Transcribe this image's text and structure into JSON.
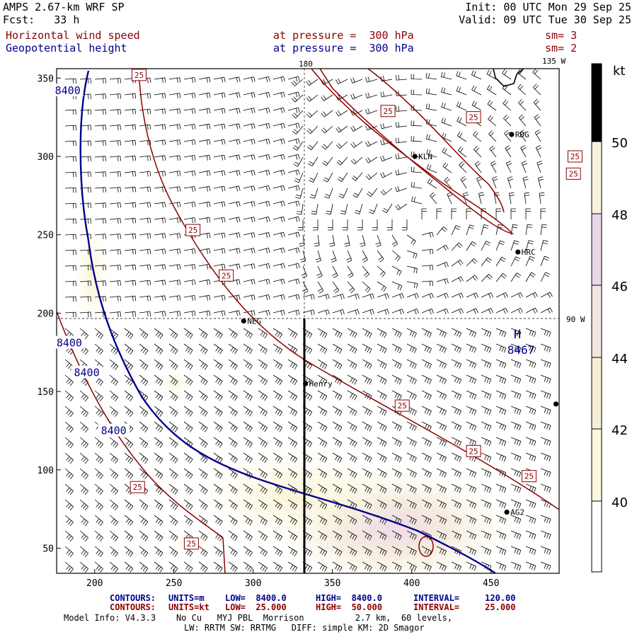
{
  "header": {
    "model": "AMPS 2.67-km WRF SP",
    "forecast": "Fcst:   33 h",
    "init": "Init: 00 UTC Mon 29 Sep 25",
    "valid": "Valid: 09 UTC Tue 30 Sep 25",
    "field1": {
      "name": "Horizontal wind speed",
      "level": "at pressure =  300 hPa",
      "sm": "sm= 3"
    },
    "field2": {
      "name": "Geopotential height",
      "level": "at pressure =  300 hPa",
      "sm": "sm= 2"
    }
  },
  "map": {
    "lon_top_label": "180",
    "lon_right_top_label": "135 W",
    "lon_right_mid_label": "90 W",
    "x_ticks": [
      "200",
      "250",
      "300",
      "350",
      "400",
      "450"
    ],
    "y_ticks": [
      "350",
      "300",
      "250",
      "200",
      "150",
      "100",
      "50"
    ],
    "x_range": [
      176,
      493
    ],
    "y_range": [
      34,
      356
    ],
    "stations": [
      {
        "id": "RDG",
        "x": 463,
        "y": 314
      },
      {
        "id": "KLN",
        "x": 402,
        "y": 300
      },
      {
        "id": "HRC",
        "x": 467,
        "y": 239
      },
      {
        "id": "NEG",
        "x": 294,
        "y": 195
      },
      {
        "id": "Henry",
        "x": 333,
        "y": 155
      },
      {
        "id": "AG2",
        "x": 460,
        "y": 73
      },
      {
        "id": "",
        "x": 491,
        "y": 142
      }
    ],
    "height_labels": [
      {
        "text": "8400",
        "x": 183,
        "y": 342
      },
      {
        "text": "8400",
        "x": 184,
        "y": 181
      },
      {
        "text": "8400",
        "x": 195,
        "y": 162
      },
      {
        "text": "8400",
        "x": 212,
        "y": 125
      }
    ],
    "high_marker": {
      "symbol": "H",
      "value": "8467",
      "x": 469,
      "y": 186
    },
    "wind_labels": [
      {
        "text": "25",
        "x": 228,
        "y": 352
      },
      {
        "text": "25",
        "x": 385,
        "y": 329
      },
      {
        "text": "25",
        "x": 439,
        "y": 325
      },
      {
        "text": "25",
        "x": 503,
        "y": 300
      },
      {
        "text": "25",
        "x": 502,
        "y": 289
      },
      {
        "text": "25",
        "x": 262,
        "y": 253
      },
      {
        "text": "25",
        "x": 283,
        "y": 224
      },
      {
        "text": "25",
        "x": 394,
        "y": 141
      },
      {
        "text": "25",
        "x": 439,
        "y": 112
      },
      {
        "text": "25",
        "x": 474,
        "y": 96
      },
      {
        "text": "25",
        "x": 227,
        "y": 89
      },
      {
        "text": "25",
        "x": 261,
        "y": 53
      }
    ]
  },
  "legend": {
    "unit": "kt",
    "ticks": [
      "50",
      "48",
      "46",
      "44",
      "42",
      "40"
    ],
    "colors": [
      "#ffffff",
      "#fcf7dc",
      "#f6eed6",
      "#f3e6e0",
      "#ead7e8",
      "#f9f3dd"
    ]
  },
  "footer": {
    "contours_height": {
      "label": "CONTOURS:",
      "units": "UNITS=m",
      "low": "LOW=  8400.0",
      "high": "HIGH=  8400.0",
      "interval": "INTERVAL=     120.00"
    },
    "contours_wind": {
      "label": "CONTOURS:",
      "units": "UNITS=kt",
      "low": "LOW=  25.000",
      "high": "HIGH=  50.000",
      "interval": "INTERVAL=     25.000"
    },
    "model_info": "Model Info: V4.3.3    No Cu   MYJ PBL  Morrison          2.7 km,  60 levels,",
    "model_info2": "LW: RRTM SW: RRTMG   DIFF: simple KM: 2D Smagor"
  }
}
